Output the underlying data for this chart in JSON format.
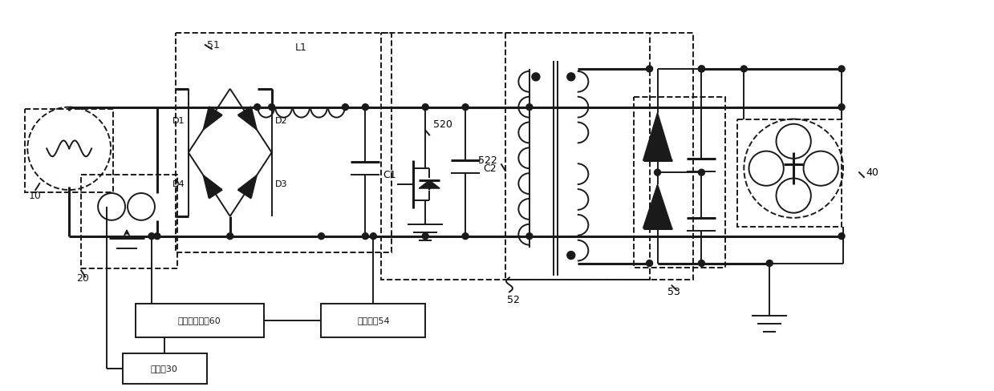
{
  "bg_color": "#ffffff",
  "lc": "#1a1a1a",
  "lw": 1.4,
  "lw2": 2.2,
  "fig_width": 12.39,
  "fig_height": 4.88,
  "labels": {
    "voltage_detect": "电压检测电路60",
    "process_circuit": "处理电路54",
    "operate": "操作部30"
  }
}
